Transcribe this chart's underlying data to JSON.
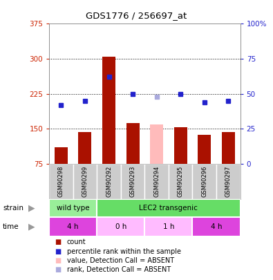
{
  "title": "GDS1776 / 256697_at",
  "samples": [
    "GSM90298",
    "GSM90299",
    "GSM90292",
    "GSM90293",
    "GSM90294",
    "GSM90295",
    "GSM90296",
    "GSM90297"
  ],
  "bar_values": [
    110,
    143,
    304,
    163,
    160,
    153,
    137,
    143
  ],
  "bar_colors": [
    "#aa1100",
    "#aa1100",
    "#aa1100",
    "#aa1100",
    "#ffbbbb",
    "#aa1100",
    "#aa1100",
    "#aa1100"
  ],
  "rank_values": [
    42,
    45,
    62,
    50,
    48,
    50,
    44,
    45
  ],
  "rank_colors": [
    "#2222cc",
    "#2222cc",
    "#2222cc",
    "#2222cc",
    "#aaaadd",
    "#2222cc",
    "#2222cc",
    "#2222cc"
  ],
  "ylim_left": [
    75,
    375
  ],
  "ylim_right": [
    0,
    100
  ],
  "yticks_left": [
    75,
    150,
    225,
    300,
    375
  ],
  "yticks_right": [
    0,
    25,
    50,
    75,
    100
  ],
  "ytick_right_labels": [
    "0",
    "25",
    "50",
    "75",
    "100%"
  ],
  "strain_labels": [
    {
      "text": "wild type",
      "start": 0,
      "end": 2,
      "color": "#99ee99"
    },
    {
      "text": "LEC2 transgenic",
      "start": 2,
      "end": 8,
      "color": "#66dd66"
    }
  ],
  "time_labels": [
    {
      "text": "4 h",
      "start": 0,
      "end": 2,
      "color": "#dd44dd"
    },
    {
      "text": "0 h",
      "start": 2,
      "end": 4,
      "color": "#ffbbff"
    },
    {
      "text": "1 h",
      "start": 4,
      "end": 6,
      "color": "#ffbbff"
    },
    {
      "text": "4 h",
      "start": 6,
      "end": 8,
      "color": "#dd44dd"
    }
  ],
  "legend_items": [
    {
      "label": "count",
      "color": "#aa1100"
    },
    {
      "label": "percentile rank within the sample",
      "color": "#2222cc"
    },
    {
      "label": "value, Detection Call = ABSENT",
      "color": "#ffbbbb"
    },
    {
      "label": "rank, Detection Call = ABSENT",
      "color": "#aaaadd"
    }
  ],
  "bg_color": "#ffffff",
  "left_axis_color": "#cc2200",
  "right_axis_color": "#2222cc",
  "label_bg_color": "#cccccc"
}
